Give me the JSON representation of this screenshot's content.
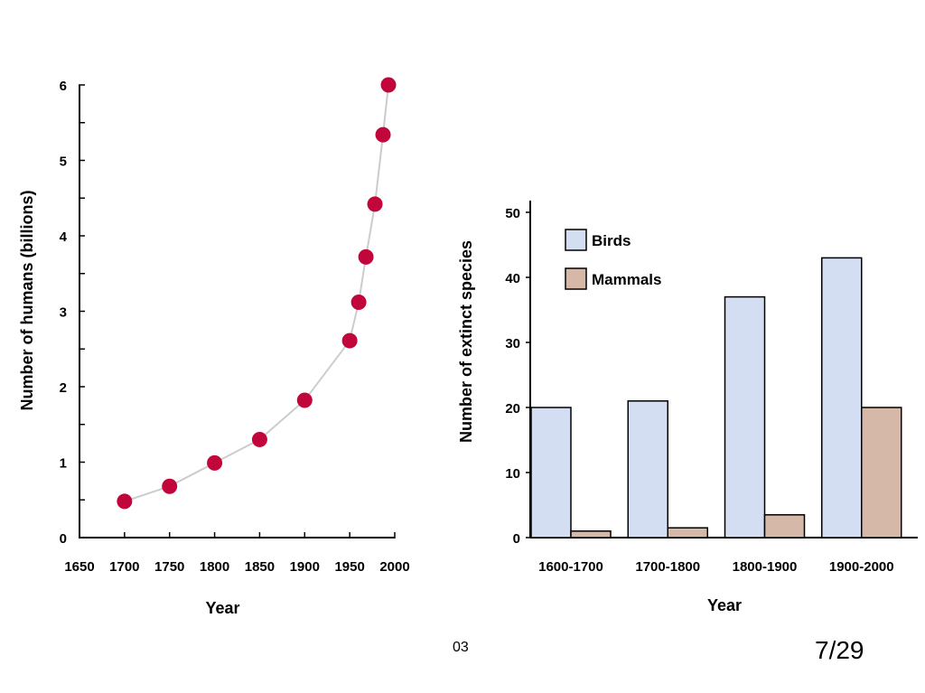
{
  "chart_data": [
    {
      "type": "line",
      "title": "",
      "xlabel": "Year",
      "ylabel": "Number of humans (billions)",
      "xlim": [
        1650,
        2000
      ],
      "ylim": [
        0,
        6
      ],
      "x_ticks": [
        "1650",
        "1700",
        "1750",
        "1800",
        "1850",
        "1900",
        "1950",
        "2000"
      ],
      "y_ticks": [
        "0",
        "1",
        "2",
        "3",
        "4",
        "5",
        "6"
      ],
      "series": [
        {
          "x": [
            1700,
            1750,
            1800,
            1850,
            1900,
            1950,
            1960,
            1968,
            1978,
            1987,
            1993
          ],
          "y": [
            0.48,
            0.68,
            0.99,
            1.3,
            1.82,
            2.61,
            3.12,
            3.72,
            4.42,
            5.34,
            6.0
          ]
        }
      ],
      "marker_color": "#c0063a",
      "line_color": "#cccccc"
    },
    {
      "type": "bar",
      "title": "",
      "xlabel": "Year",
      "ylabel": "Number of extinct species",
      "ylim": [
        0,
        50
      ],
      "y_ticks": [
        "0",
        "10",
        "20",
        "30",
        "40",
        "50"
      ],
      "categories": [
        "1600-1700",
        "1700-1800",
        "1800-1900",
        "1900-2000"
      ],
      "series": [
        {
          "name": "Birds",
          "values": [
            20,
            21,
            37,
            43
          ],
          "color": "#d3def2"
        },
        {
          "name": "Mammals",
          "values": [
            1,
            1.5,
            3.5,
            20
          ],
          "color": "#d5b8a8"
        }
      ],
      "legend_position": "top-left"
    }
  ],
  "footer": {
    "code": "03",
    "page": "7/29"
  }
}
